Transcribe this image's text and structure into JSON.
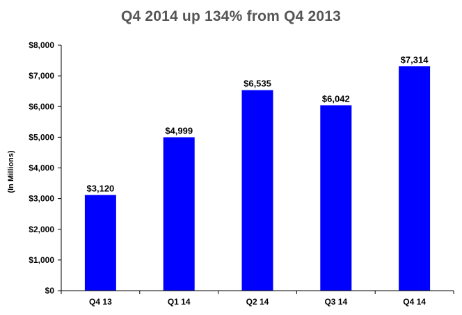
{
  "chart_data": {
    "type": "bar",
    "title": "Q4 2014 up 134% from Q4 2013",
    "ylabel": "(In Millions)",
    "xlabel": "",
    "categories": [
      "Q4 13",
      "Q1 14",
      "Q2 14",
      "Q3 14",
      "Q4 14"
    ],
    "values": [
      3120,
      4999,
      6535,
      6042,
      7314
    ],
    "data_labels": [
      "$3,120",
      "$4,999",
      "$6,535",
      "$6,042",
      "$7,314"
    ],
    "ylim": [
      0,
      8000
    ],
    "y_ticks": [
      0,
      1000,
      2000,
      3000,
      4000,
      5000,
      6000,
      7000,
      8000
    ],
    "y_tick_labels": [
      "$0",
      "$1,000",
      "$2,000",
      "$3,000",
      "$4,000",
      "$5,000",
      "$6,000",
      "$7,000",
      "$8,000"
    ],
    "grid": false,
    "legend": "none",
    "bar_color": "#0000FF"
  }
}
